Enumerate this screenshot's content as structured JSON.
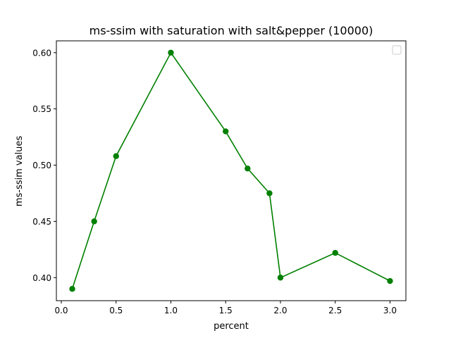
{
  "chart_data": {
    "type": "line",
    "title": "ms-ssim with saturation with salt&pepper (10000)",
    "xlabel": "percent",
    "ylabel": "ms-ssim values",
    "xlim": [
      -0.045,
      3.145
    ],
    "ylim": [
      0.3795,
      0.6105
    ],
    "xticks": [
      0.0,
      0.5,
      1.0,
      1.5,
      2.0,
      2.5,
      3.0
    ],
    "xtick_labels": [
      "0.0",
      "0.5",
      "1.0",
      "1.5",
      "2.0",
      "2.5",
      "3.0"
    ],
    "yticks": [
      0.4,
      0.45,
      0.5,
      0.55,
      0.6
    ],
    "ytick_labels": [
      "0.40",
      "0.45",
      "0.50",
      "0.55",
      "0.60"
    ],
    "grid": false,
    "legend": {
      "placement": "top-right",
      "entries": []
    },
    "series": [
      {
        "color": "#008000",
        "marker": "circle",
        "x": [
          0.1,
          0.3,
          0.5,
          1.0,
          1.5,
          1.7,
          1.9,
          2.0,
          2.5,
          3.0
        ],
        "y": [
          0.39,
          0.45,
          0.508,
          0.6,
          0.53,
          0.497,
          0.475,
          0.4,
          0.422,
          0.397
        ]
      }
    ]
  }
}
